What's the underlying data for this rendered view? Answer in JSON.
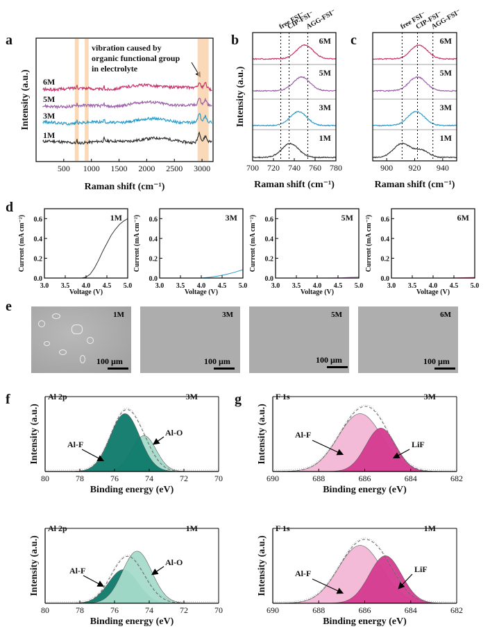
{
  "colors": {
    "c6M": "#c8326a",
    "c5M": "#9b5ea8",
    "c3M": "#2a9bc8",
    "c1M": "#333333",
    "band": "#f6c99a",
    "alf": "#0e7a6a",
    "alo": "#a6dccb",
    "fmain": "#f4b8d6",
    "lif": "#d63b90"
  },
  "panels": {
    "a": {
      "label": "a",
      "annotation": [
        "vibration caused by",
        "organic functional group",
        "in electrolyte"
      ]
    },
    "b": {
      "label": "b"
    },
    "c": {
      "label": "c"
    },
    "d": {
      "label": "d"
    },
    "e": {
      "label": "e"
    },
    "f": {
      "label": "f"
    },
    "g": {
      "label": "g"
    }
  },
  "sem": {
    "scale_text": "100 µm",
    "labels": [
      "1M",
      "3M",
      "5M",
      "6M"
    ]
  },
  "chart_data": [
    {
      "id": "a",
      "type": "line",
      "xlabel": "Raman shift (cm⁻¹)",
      "ylabel": "Intensity (a.u.)",
      "xlim": [
        0,
        3200
      ],
      "xticks": [
        500,
        1000,
        1500,
        2000,
        2500,
        3000
      ],
      "series": [
        {
          "name": "1M",
          "color_key": "c1M",
          "baseline": 0.0
        },
        {
          "name": "3M",
          "color_key": "c3M",
          "baseline": 1.0
        },
        {
          "name": "5M",
          "color_key": "c5M",
          "baseline": 1.85
        },
        {
          "name": "6M",
          "color_key": "c6M",
          "baseline": 2.65
        }
      ],
      "peaks": [
        740,
        1230,
        2950,
        3060
      ],
      "highlight_bands": [
        [
          700,
          770
        ],
        [
          880,
          950
        ],
        [
          2920,
          3120
        ]
      ]
    },
    {
      "id": "b",
      "type": "line",
      "xlabel": "Raman shift (cm⁻¹)",
      "ylabel": "Intensity (a.u.)",
      "xlim": [
        700,
        780
      ],
      "xticks": [
        700,
        720,
        740,
        760,
        780
      ],
      "reference_lines": [
        {
          "label": "free FSI⁻",
          "x": 727
        },
        {
          "label": "CIP-FSI⁻",
          "x": 735
        },
        {
          "label": "AGG-FSI⁻",
          "x": 753
        }
      ],
      "series": [
        {
          "name": "1M",
          "color_key": "c1M",
          "peak_x": 736
        },
        {
          "name": "3M",
          "color_key": "c3M",
          "peak_x": 744
        },
        {
          "name": "5M",
          "color_key": "c5M",
          "peak_x": 747
        },
        {
          "name": "6M",
          "color_key": "c6M",
          "peak_x": 750
        }
      ]
    },
    {
      "id": "c",
      "type": "line",
      "xlabel": "Raman shift (cm⁻¹)",
      "ylabel": "",
      "xlim": [
        890,
        950
      ],
      "xticks": [
        900,
        920,
        940
      ],
      "reference_lines": [
        {
          "label": "free FSI⁻",
          "x": 911
        },
        {
          "label": "CIP-FSI⁻",
          "x": 922
        },
        {
          "label": "AGG-FSI⁻",
          "x": 933
        }
      ],
      "series": [
        {
          "name": "1M",
          "color_key": "c1M",
          "peak_x": 911
        },
        {
          "name": "3M",
          "color_key": "c3M",
          "peak_x": 921
        },
        {
          "name": "5M",
          "color_key": "c5M",
          "peak_x": 922
        },
        {
          "name": "6M",
          "color_key": "c6M",
          "peak_x": 923
        }
      ]
    },
    {
      "id": "d",
      "type": "line",
      "xlabel": "Voltage (V)",
      "ylabel": "Current (mA cm⁻²)",
      "xlim": [
        3.0,
        5.0
      ],
      "ylim": [
        0.0,
        0.7
      ],
      "xticks": [
        3.0,
        3.5,
        4.0,
        4.5,
        5.0
      ],
      "yticks": [
        0.0,
        0.2,
        0.4,
        0.6
      ],
      "series": [
        {
          "name": "1M",
          "color_key": "c1M",
          "x": [
            3.0,
            3.9,
            4.0,
            4.1,
            4.2,
            4.3,
            4.4,
            4.5,
            4.6,
            4.7,
            4.8,
            4.9,
            5.0
          ],
          "y": [
            0.0,
            0.0,
            0.01,
            0.04,
            0.1,
            0.18,
            0.27,
            0.35,
            0.43,
            0.49,
            0.54,
            0.575,
            0.6
          ]
        },
        {
          "name": "3M",
          "color_key": "c3M",
          "x": [
            3.0,
            4.0,
            4.2,
            4.4,
            4.6,
            4.8,
            5.0
          ],
          "y": [
            0.0,
            0.0,
            0.008,
            0.02,
            0.037,
            0.058,
            0.085
          ]
        },
        {
          "name": "5M",
          "color_key": "c5M",
          "x": [
            3.0,
            4.2,
            4.6,
            5.0
          ],
          "y": [
            0.0,
            0.0,
            0.003,
            0.01
          ]
        },
        {
          "name": "6M",
          "color_key": "c6M",
          "x": [
            3.0,
            4.4,
            5.0
          ],
          "y": [
            0.0,
            0.0,
            0.006
          ]
        }
      ]
    },
    {
      "id": "f_top",
      "type": "area",
      "title": "Al 2p",
      "sample": "3M",
      "xlabel": "Binding energy (eV)",
      "ylabel": "Intensity (a.u.)",
      "xlim": [
        80,
        70
      ],
      "xticks": [
        80,
        78,
        76,
        74,
        72,
        70
      ],
      "components": [
        {
          "name": "Al-F",
          "center": 75.4,
          "height": 1.0,
          "sigma": 0.85,
          "color_key": "alf"
        },
        {
          "name": "Al-O",
          "center": 74.3,
          "height": 0.62,
          "sigma": 0.7,
          "color_key": "alo"
        }
      ]
    },
    {
      "id": "f_bottom",
      "type": "area",
      "title": "Al 2p",
      "sample": "1M",
      "xlabel": "Binding energy (eV)",
      "ylabel": "Intensity (a.u.)",
      "xlim": [
        80,
        70
      ],
      "xticks": [
        80,
        78,
        76,
        74,
        72,
        70
      ],
      "components": [
        {
          "name": "Al-F",
          "center": 75.5,
          "height": 0.58,
          "sigma": 0.85,
          "color_key": "alf"
        },
        {
          "name": "Al-O",
          "center": 74.7,
          "height": 0.9,
          "sigma": 0.85,
          "color_key": "alo"
        }
      ]
    },
    {
      "id": "g_top",
      "type": "area",
      "title": "F 1s",
      "sample": "3M",
      "xlabel": "Binding energy (eV)",
      "ylabel": "Intensity (a.u.)",
      "xlim": [
        690,
        682
      ],
      "xticks": [
        690,
        688,
        686,
        684,
        682
      ],
      "components": [
        {
          "name": "Al-F",
          "center": 686.2,
          "height": 1.0,
          "sigma": 0.95,
          "color_key": "fmain"
        },
        {
          "name": "LiF",
          "center": 685.3,
          "height": 0.75,
          "sigma": 0.65,
          "color_key": "lif"
        }
      ]
    },
    {
      "id": "g_bottom",
      "type": "area",
      "title": "F 1s",
      "sample": "1M",
      "xlabel": "Binding energy (eV)",
      "ylabel": "Intensity (a.u.)",
      "xlim": [
        690,
        682
      ],
      "xticks": [
        690,
        688,
        686,
        684,
        682
      ],
      "components": [
        {
          "name": "Al-F",
          "center": 686.2,
          "height": 1.0,
          "sigma": 0.95,
          "color_key": "fmain"
        },
        {
          "name": "LiF",
          "center": 685.1,
          "height": 0.82,
          "sigma": 0.7,
          "color_key": "lif"
        }
      ]
    }
  ]
}
